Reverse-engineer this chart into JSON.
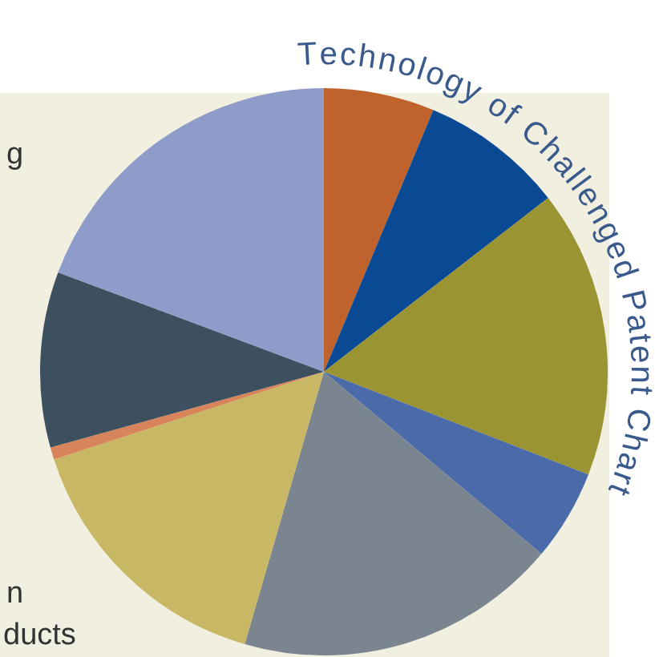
{
  "chart_data": {
    "type": "pie",
    "title": "Technology of Challenged Patent Chart",
    "categories": [
      null,
      null,
      null,
      null,
      null,
      null,
      null,
      null,
      null
    ],
    "values": [
      6.3,
      8.2,
      16.4,
      5.2,
      18.4,
      15.5,
      0.7,
      10,
      19.3
    ],
    "colors": [
      "#c0622b",
      "#0a4a94",
      "#9a9433",
      "#4a6aaa",
      "#7a8590",
      "#c8b865",
      "#d8845a",
      "#3d5060",
      "#8f9bc8"
    ],
    "annotations": [
      "g",
      "n",
      "ducts"
    ],
    "legend": false
  }
}
